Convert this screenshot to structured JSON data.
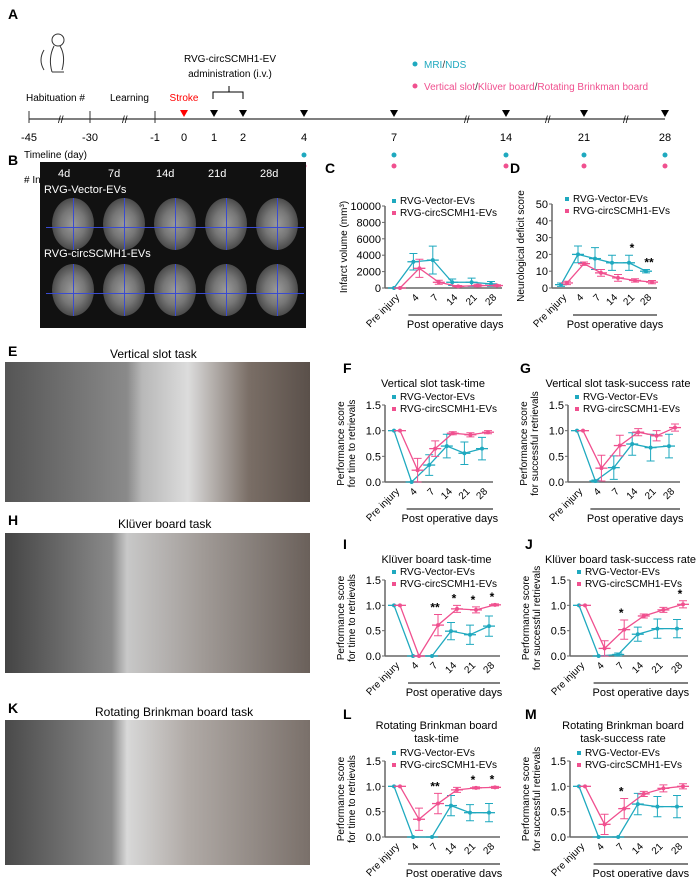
{
  "colors": {
    "vector": "#1fa9bf",
    "circ": "#f0508f",
    "stroke": "#ff0000"
  },
  "timeline": {
    "letter": "A",
    "injection_title": "RVG-circSCMH1-EV",
    "injection_sub": "administration (i.v.)",
    "habituation": "Habituation #",
    "learning": "Learning",
    "stroke": "Stroke",
    "axis_label": "Timeline (day)",
    "footnote": "# Including the determination of the preferred hand",
    "ticks": [
      "-45",
      "-30",
      "-1",
      "0",
      "1",
      "2",
      "4",
      "7",
      "14",
      "21",
      "28"
    ],
    "legend_mri": [
      "MRI",
      "/",
      "NDS"
    ],
    "legend_behav": [
      "Vertical slot",
      "/",
      "Klüver board",
      "/",
      "Rotating Brinkman board"
    ],
    "icons": [
      "monkey-icon"
    ]
  },
  "mri": {
    "letter": "B",
    "days": [
      "4d",
      "7d",
      "14d",
      "21d",
      "28d"
    ],
    "rows": [
      "RVG-Vector-EVs",
      "RVG-circSCMH1-EVs"
    ]
  },
  "photos": [
    {
      "letter": "E",
      "title": "Vertical slot task"
    },
    {
      "letter": "H",
      "title": "Klüver board task"
    },
    {
      "letter": "K",
      "title": "Rotating  Brinkman board task"
    }
  ],
  "chart_data": [
    {
      "id": "C",
      "type": "line",
      "title": "",
      "ylabel": "Infarct volume (mm³)",
      "ylim": [
        0,
        10000
      ],
      "yticks": [
        "0",
        "2000",
        "4000",
        "6000",
        "8000",
        "10000"
      ],
      "categories": [
        "Pre injury",
        "4",
        "7",
        "14",
        "21",
        "28"
      ],
      "xgroup_label": "Post operative days",
      "series": [
        {
          "name": "RVG-Vector-EVs",
          "values": [
            0,
            3200,
            3400,
            700,
            700,
            500
          ],
          "sem": [
            0,
            1000,
            1700,
            400,
            500,
            300
          ]
        },
        {
          "name": "RVG-circSCMH1-EVs",
          "values": [
            0,
            2400,
            700,
            200,
            300,
            300
          ],
          "sem": [
            0,
            1100,
            250,
            100,
            150,
            100
          ]
        }
      ],
      "significance": []
    },
    {
      "id": "D",
      "type": "line",
      "title": "",
      "ylabel": "Neurological deficit score",
      "ylim": [
        0,
        50
      ],
      "yticks": [
        "0",
        "10",
        "20",
        "30",
        "40",
        "50"
      ],
      "categories": [
        "Pre injury",
        "4",
        "7",
        "14",
        "21",
        "28"
      ],
      "xgroup_label": "Post operative days",
      "series": [
        {
          "name": "RVG-Vector-EVs",
          "values": [
            2,
            20,
            17.5,
            15,
            15,
            10
          ],
          "sem": [
            1,
            5,
            6.5,
            4.5,
            4.5,
            1
          ]
        },
        {
          "name": "RVG-circSCMH1-EVs",
          "values": [
            3,
            14.5,
            9,
            6,
            4.5,
            3.5
          ],
          "sem": [
            1,
            1,
            2,
            2,
            1,
            1
          ]
        }
      ],
      "significance": [
        {
          "x": "21",
          "label": "*"
        },
        {
          "x": "28",
          "label": "**"
        }
      ]
    },
    {
      "id": "F",
      "type": "line",
      "title": "Vertical slot task-time",
      "ylabel": "Performance score\nfor time to retrievals",
      "ylim": [
        0,
        1.5
      ],
      "yticks": [
        "0.0",
        "0.5",
        "1.0",
        "1.5"
      ],
      "categories": [
        "Pre injury",
        "4",
        "7",
        "14",
        "21",
        "28"
      ],
      "xgroup_label": "Post operative days",
      "series": [
        {
          "name": "RVG-Vector-EVs",
          "values": [
            1,
            0,
            0.33,
            0.7,
            0.56,
            0.65
          ],
          "sem": [
            0,
            0,
            0.2,
            0.23,
            0.22,
            0.22
          ]
        },
        {
          "name": "RVG-circSCMH1-EVs",
          "values": [
            1,
            0.23,
            0.65,
            0.95,
            0.92,
            0.97
          ],
          "sem": [
            0,
            0.23,
            0.15,
            0.03,
            0.04,
            0.03
          ]
        }
      ],
      "significance": []
    },
    {
      "id": "G",
      "type": "line",
      "title": "Vertical slot task-success rate",
      "ylabel": "Performance score\nfor successful retrievals",
      "ylim": [
        0,
        1.5
      ],
      "yticks": [
        "0.0",
        "0.5",
        "1.0",
        "1.5"
      ],
      "categories": [
        "Pre injury",
        "4",
        "7",
        "14",
        "21",
        "28"
      ],
      "xgroup_label": "Post operative days",
      "series": [
        {
          "name": "RVG-Vector-EVs",
          "values": [
            1,
            0.02,
            0.28,
            0.74,
            0.67,
            0.7
          ],
          "sem": [
            0,
            0.02,
            0.23,
            0.22,
            0.26,
            0.23
          ]
        },
        {
          "name": "RVG-circSCMH1-EVs",
          "values": [
            1,
            0.27,
            0.71,
            0.97,
            0.9,
            1.06
          ],
          "sem": [
            0,
            0.25,
            0.2,
            0.07,
            0.1,
            0.07
          ]
        }
      ],
      "significance": []
    },
    {
      "id": "I",
      "type": "line",
      "title": "Klüver board task-time",
      "ylabel": "Performance score\nfor time to retrievals",
      "ylim": [
        0,
        1.5
      ],
      "yticks": [
        "0.0",
        "0.5",
        "1.0",
        "1.5"
      ],
      "categories": [
        "Pre injury",
        "4",
        "7",
        "14",
        "21",
        "28"
      ],
      "xgroup_label": "Post operative days",
      "series": [
        {
          "name": "RVG-Vector-EVs",
          "values": [
            1,
            0,
            0,
            0.49,
            0.42,
            0.59
          ],
          "sem": [
            0,
            0,
            0,
            0.17,
            0.19,
            0.2
          ]
        },
        {
          "name": "RVG-circSCMH1-EVs",
          "values": [
            1,
            0,
            0.61,
            0.93,
            0.91,
            1.01
          ],
          "sem": [
            0,
            0,
            0.21,
            0.07,
            0.06,
            0.02
          ]
        }
      ],
      "significance": [
        {
          "x": "7",
          "label": "**"
        },
        {
          "x": "14",
          "label": "*"
        },
        {
          "x": "21",
          "label": "*"
        },
        {
          "x": "28",
          "label": "*"
        }
      ]
    },
    {
      "id": "J",
      "type": "line",
      "title": "Klüver board task-success rate",
      "ylabel": "Performance score\nfor successful retrievals",
      "ylim": [
        0,
        1.5
      ],
      "yticks": [
        "0.0",
        "0.5",
        "1.0",
        "1.5"
      ],
      "categories": [
        "Pre injury",
        "4",
        "7",
        "14",
        "21",
        "28"
      ],
      "xgroup_label": "Post operative days",
      "series": [
        {
          "name": "RVG-Vector-EVs",
          "values": [
            1,
            0,
            0.03,
            0.43,
            0.54,
            0.54
          ],
          "sem": [
            0,
            0,
            0.03,
            0.14,
            0.19,
            0.18
          ]
        },
        {
          "name": "RVG-circSCMH1-EVs",
          "values": [
            1,
            0.15,
            0.52,
            0.79,
            0.91,
            1.02
          ],
          "sem": [
            0,
            0.15,
            0.19,
            0.04,
            0.05,
            0.07
          ]
        }
      ],
      "significance": [
        {
          "x": "7",
          "label": "*"
        },
        {
          "x": "28",
          "label": "*"
        }
      ]
    },
    {
      "id": "L",
      "type": "line",
      "title": "Rotating Brinkman board\ntask-time",
      "ylabel": "Performance score\nfor time to retrievals",
      "ylim": [
        0,
        1.5
      ],
      "yticks": [
        "0.0",
        "0.5",
        "1.0",
        "1.5"
      ],
      "categories": [
        "Pre injury",
        "4",
        "7",
        "14",
        "21",
        "28"
      ],
      "xgroup_label": "Post operative days",
      "series": [
        {
          "name": "RVG-Vector-EVs",
          "values": [
            1,
            0,
            0,
            0.62,
            0.48,
            0.48
          ],
          "sem": [
            0,
            0,
            0,
            0.2,
            0.16,
            0.18
          ]
        },
        {
          "name": "RVG-circSCMH1-EVs",
          "values": [
            1,
            0.35,
            0.66,
            0.93,
            0.97,
            0.98
          ],
          "sem": [
            0,
            0.22,
            0.2,
            0.05,
            0.02,
            0.02
          ]
        }
      ],
      "significance": [
        {
          "x": "7",
          "label": "**"
        },
        {
          "x": "21",
          "label": "*"
        },
        {
          "x": "28",
          "label": "*"
        }
      ]
    },
    {
      "id": "M",
      "type": "line",
      "title": "Rotating Brinkman board\ntask-success rate",
      "ylabel": "Performance score\nfor successful retrievals",
      "ylim": [
        0,
        1.5
      ],
      "yticks": [
        "0.0",
        "0.5",
        "1.0",
        "1.5"
      ],
      "categories": [
        "Pre injury",
        "4",
        "7",
        "14",
        "21",
        "28"
      ],
      "xgroup_label": "Post operative days",
      "series": [
        {
          "name": "RVG-Vector-EVs",
          "values": [
            1,
            0,
            0,
            0.65,
            0.6,
            0.6
          ],
          "sem": [
            0,
            0,
            0,
            0.21,
            0.2,
            0.22
          ]
        },
        {
          "name": "RVG-circSCMH1-EVs",
          "values": [
            1,
            0.25,
            0.56,
            0.85,
            0.96,
            1.0
          ],
          "sem": [
            0,
            0.2,
            0.2,
            0.05,
            0.07,
            0.05
          ]
        }
      ],
      "significance": [
        {
          "x": "7",
          "label": "*"
        }
      ]
    }
  ]
}
